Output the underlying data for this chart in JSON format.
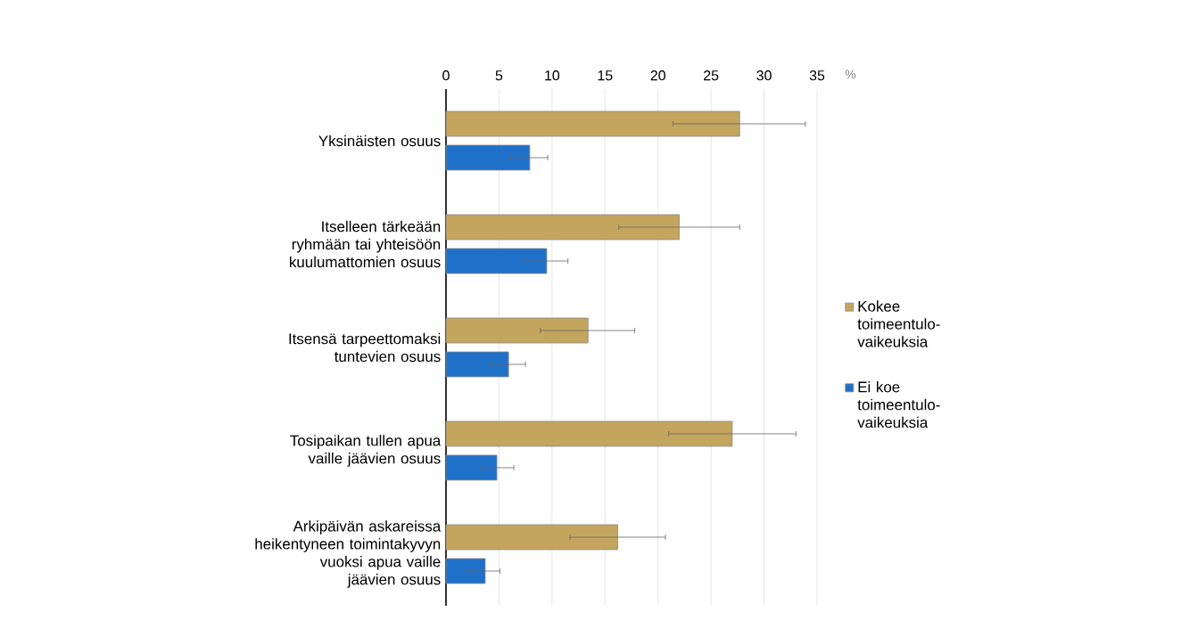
{
  "chart_data": {
    "type": "bar",
    "orientation": "horizontal",
    "xlabel": "%",
    "categories": [
      "Yksinäisten osuus",
      "Itselleen tärkeään ryhmään tai yhteisöön kuulumattomien osuus",
      "Itsensä tarpeettomaksi tuntevien osuus",
      "Tosipaikan tullen apua vaille jäävien osuus",
      "Arkipäivän askareissa heikentyneen toimintakyvyn vuoksi apua vaille jäävien osuus"
    ],
    "series": [
      {
        "name": "Kokee toimeentulo-vaikeuksia",
        "color": "#c4a55e",
        "values": [
          27.7,
          22.0,
          13.4,
          27.0,
          16.2
        ],
        "errors": [
          [
            21.4,
            33.9
          ],
          [
            16.3,
            27.7
          ],
          [
            8.9,
            17.8
          ],
          [
            21.0,
            33.0
          ],
          [
            11.7,
            20.7
          ]
        ]
      },
      {
        "name": "Ei koe toimeentulo-vaikeuksia",
        "color": "#1f70c8",
        "values": [
          7.9,
          9.5,
          5.9,
          4.8,
          3.7
        ],
        "errors": [
          [
            6.1,
            9.6
          ],
          [
            7.3,
            11.5
          ],
          [
            4.2,
            7.5
          ],
          [
            3.3,
            6.4
          ],
          [
            2.1,
            5.1
          ]
        ]
      }
    ],
    "xlim": [
      0,
      35
    ],
    "xticks": [
      0,
      5,
      10,
      15,
      20,
      25,
      30,
      35
    ],
    "grid": "x",
    "legend": "right"
  }
}
